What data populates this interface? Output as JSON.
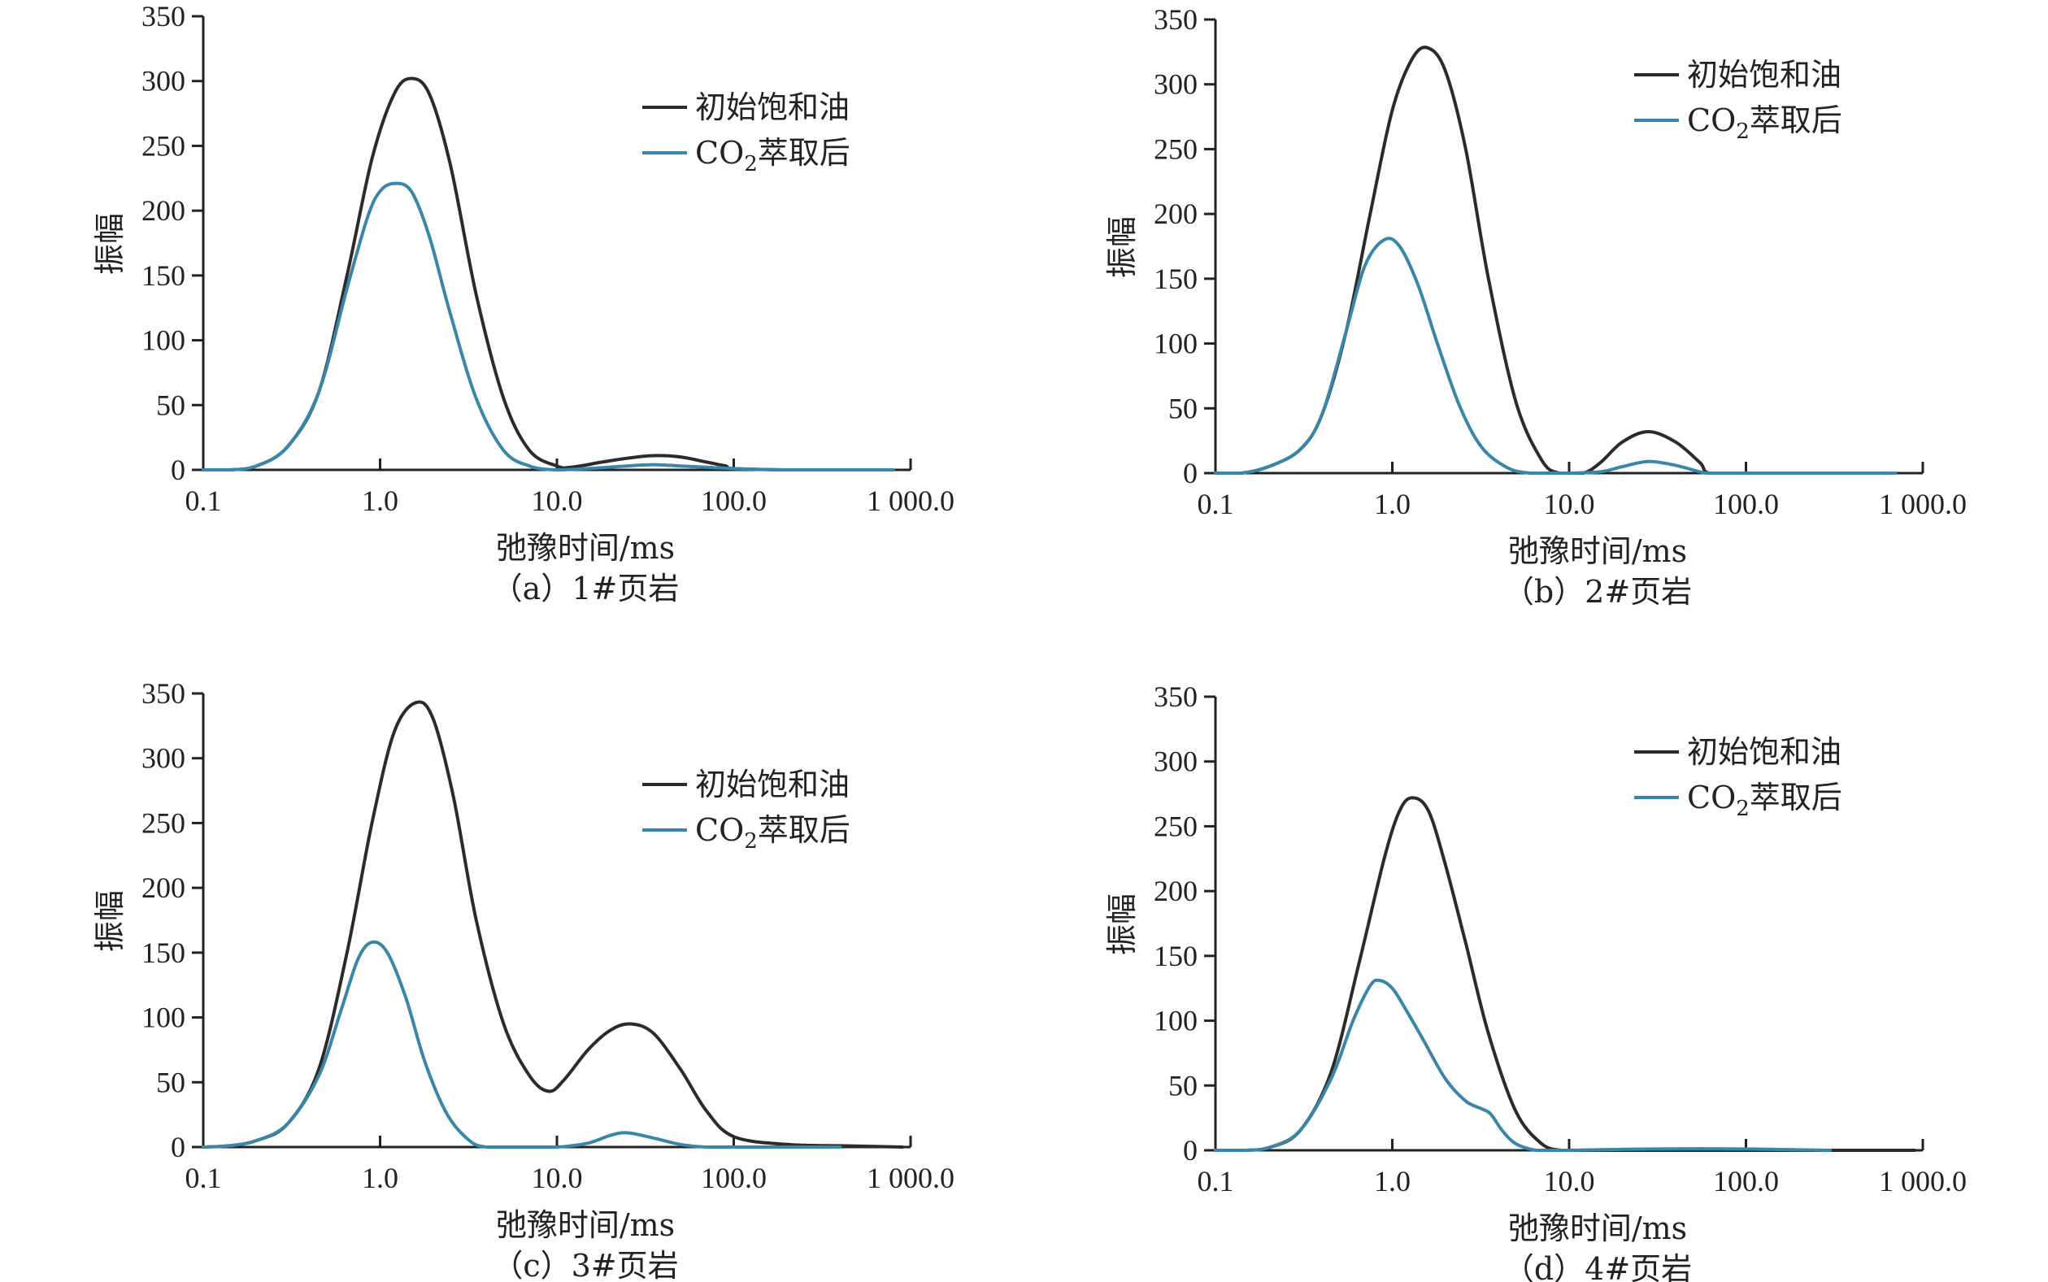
{
  "colors": {
    "initial": "#2b2b2b",
    "co2": "#3a86a8",
    "axis": "#222222"
  },
  "chart_data": [
    {
      "type": "line",
      "caption": "（a）1#页岩",
      "xlabel": "弛豫时间/ms",
      "ylabel": "振幅",
      "xscale": "log",
      "xlim": [
        0.1,
        1000
      ],
      "ylim": [
        0,
        350
      ],
      "x_ticks": [
        "0.1",
        "1.0",
        "10.0",
        "100.0",
        "1 000.0"
      ],
      "y_ticks": [
        "0",
        "50",
        "100",
        "150",
        "200",
        "250",
        "300",
        "350"
      ],
      "legend": {
        "position": "top-right",
        "entries": [
          "初始饱和油",
          "CO2萃取后"
        ]
      },
      "series": [
        {
          "name": "初始饱和油",
          "x": [
            0.1,
            0.14,
            0.2,
            0.3,
            0.45,
            0.65,
            0.9,
            1.2,
            1.5,
            1.9,
            2.5,
            3.5,
            5,
            7,
            10,
            12,
            18,
            25,
            35,
            50,
            70,
            90,
            100,
            200,
            500,
            800
          ],
          "values": [
            0,
            0,
            3,
            18,
            60,
            150,
            240,
            290,
            302,
            290,
            235,
            135,
            55,
            15,
            3,
            2,
            6,
            9,
            11,
            10,
            6,
            3,
            1,
            0,
            0,
            0
          ]
        },
        {
          "name": "CO2萃取后",
          "x": [
            0.1,
            0.14,
            0.2,
            0.3,
            0.45,
            0.65,
            0.85,
            1.0,
            1.2,
            1.5,
            1.9,
            2.5,
            3.5,
            5,
            7,
            10,
            15,
            25,
            35,
            50,
            70,
            100,
            200,
            500,
            800
          ],
          "values": [
            0,
            0,
            3,
            18,
            60,
            140,
            195,
            215,
            221,
            215,
            180,
            120,
            55,
            15,
            3,
            0,
            1,
            3,
            4,
            3,
            2,
            1,
            0,
            0,
            0
          ]
        }
      ]
    },
    {
      "type": "line",
      "caption": "（b）2#页岩",
      "xlabel": "弛豫时间/ms",
      "ylabel": "振幅",
      "xscale": "log",
      "xlim": [
        0.1,
        1000
      ],
      "ylim": [
        0,
        350
      ],
      "x_ticks": [
        "0.1",
        "1.0",
        "10.0",
        "100.0",
        "1 000.0"
      ],
      "y_ticks": [
        "0",
        "50",
        "100",
        "150",
        "200",
        "250",
        "300",
        "350"
      ],
      "legend": {
        "position": "top-right",
        "entries": [
          "初始饱和油",
          "CO2萃取后"
        ]
      },
      "series": [
        {
          "name": "初始饱和油",
          "x": [
            0.1,
            0.14,
            0.2,
            0.3,
            0.4,
            0.55,
            0.75,
            1.0,
            1.3,
            1.6,
            2.0,
            2.6,
            3.5,
            5,
            7,
            8.8,
            12,
            15,
            20,
            28,
            40,
            55,
            62,
            100,
            300,
            700
          ],
          "values": [
            0,
            0,
            5,
            18,
            45,
            110,
            200,
            280,
            320,
            328,
            310,
            250,
            150,
            55,
            10,
            0,
            0,
            8,
            24,
            32,
            24,
            8,
            0,
            0,
            0,
            0
          ]
        },
        {
          "name": "CO2萃取后",
          "x": [
            0.1,
            0.14,
            0.2,
            0.3,
            0.4,
            0.55,
            0.7,
            0.9,
            1.1,
            1.4,
            1.8,
            2.4,
            3.2,
            4.5,
            6,
            7,
            10,
            15,
            20,
            28,
            40,
            55,
            62,
            100,
            300,
            700
          ],
          "values": [
            0,
            0,
            5,
            18,
            45,
            110,
            160,
            180,
            175,
            145,
            100,
            52,
            20,
            4,
            0,
            0,
            0,
            1,
            5,
            9,
            6,
            1,
            0,
            0,
            0,
            0
          ]
        }
      ]
    },
    {
      "type": "line",
      "caption": "（c）3#页岩",
      "xlabel": "弛豫时间/ms",
      "ylabel": "振幅",
      "xscale": "log",
      "xlim": [
        0.1,
        1000
      ],
      "ylim": [
        0,
        350
      ],
      "x_ticks": [
        "0.1",
        "1.0",
        "10.0",
        "100.0",
        "1 000.0"
      ],
      "y_ticks": [
        "0",
        "50",
        "100",
        "150",
        "200",
        "250",
        "300",
        "350"
      ],
      "legend": {
        "position": "top-right",
        "entries": [
          "初始饱和油",
          "CO2萃取后"
        ]
      },
      "series": [
        {
          "name": "初始饱和油",
          "x": [
            0.1,
            0.14,
            0.2,
            0.3,
            0.45,
            0.65,
            0.9,
            1.2,
            1.6,
            2.0,
            2.6,
            3.5,
            5,
            7,
            9,
            11,
            15,
            20,
            26,
            35,
            50,
            70,
            100,
            200,
            400,
            900
          ],
          "values": [
            0,
            1,
            5,
            18,
            60,
            150,
            250,
            320,
            343,
            330,
            270,
            175,
            95,
            55,
            43,
            52,
            75,
            90,
            95,
            88,
            60,
            28,
            8,
            2,
            1,
            0
          ]
        },
        {
          "name": "CO2萃取后",
          "x": [
            0.1,
            0.14,
            0.2,
            0.3,
            0.45,
            0.6,
            0.75,
            0.9,
            1.1,
            1.4,
            1.8,
            2.4,
            3.2,
            4,
            6,
            10,
            15,
            20,
            25,
            35,
            50,
            70,
            100,
            200,
            400
          ],
          "values": [
            0,
            1,
            5,
            18,
            55,
            105,
            145,
            158,
            150,
            115,
            65,
            25,
            5,
            0,
            0,
            0,
            3,
            9,
            11,
            7,
            2,
            0,
            0,
            0,
            0
          ]
        }
      ]
    },
    {
      "type": "line",
      "caption": "（d）4#页岩",
      "xlabel": "弛豫时间/ms",
      "ylabel": "振幅",
      "xscale": "log",
      "xlim": [
        0.1,
        1000
      ],
      "ylim": [
        0,
        350
      ],
      "x_ticks": [
        "0.1",
        "1.0",
        "10.0",
        "100.0",
        "1 000.0"
      ],
      "y_ticks": [
        "0",
        "50",
        "100",
        "150",
        "200",
        "250",
        "300",
        "350"
      ],
      "legend": {
        "position": "top-right",
        "entries": [
          "初始饱和油",
          "CO2萃取后"
        ]
      },
      "series": [
        {
          "name": "初始饱和油",
          "x": [
            0.1,
            0.15,
            0.2,
            0.3,
            0.45,
            0.65,
            0.9,
            1.1,
            1.3,
            1.6,
            2.0,
            2.6,
            3.5,
            5,
            7,
            9,
            10,
            20,
            50,
            100,
            300,
            900
          ],
          "values": [
            0,
            0,
            2,
            15,
            60,
            145,
            225,
            262,
            272,
            262,
            220,
            160,
            90,
            30,
            5,
            0,
            0,
            0,
            0,
            0,
            0,
            0
          ]
        },
        {
          "name": "CO2萃取后",
          "x": [
            0.1,
            0.15,
            0.2,
            0.3,
            0.45,
            0.6,
            0.75,
            0.85,
            1.0,
            1.2,
            1.5,
            2.0,
            2.6,
            3.2,
            3.6,
            4.2,
            5,
            6.5,
            8,
            10,
            30,
            100,
            300
          ],
          "values": [
            0,
            0,
            2,
            15,
            55,
            100,
            127,
            131,
            125,
            108,
            85,
            55,
            38,
            32,
            28,
            15,
            5,
            0,
            0,
            0,
            1,
            1,
            0
          ]
        }
      ]
    }
  ]
}
